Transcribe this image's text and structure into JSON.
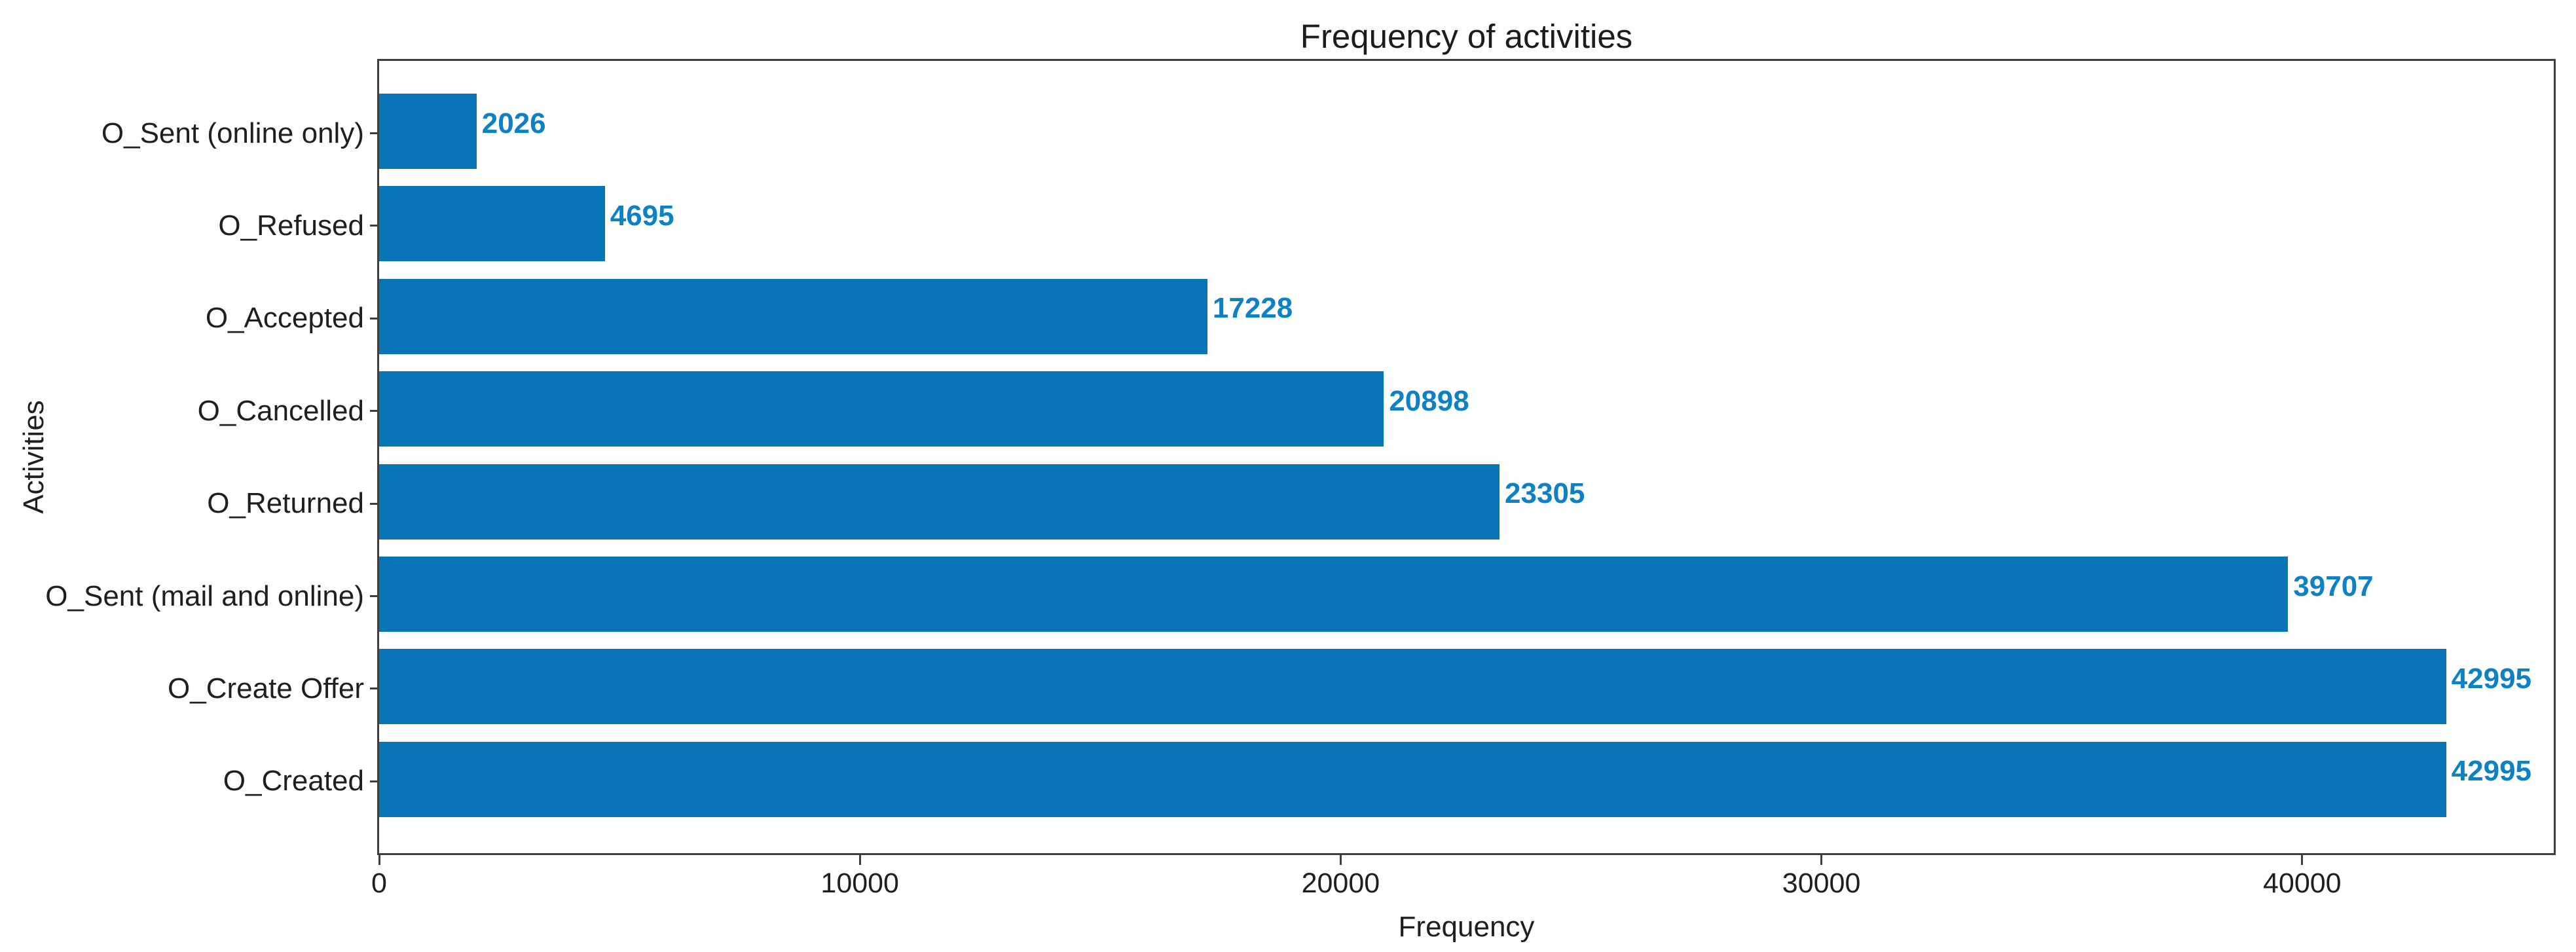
{
  "chart_data": {
    "type": "bar",
    "orientation": "horizontal",
    "title": "Frequency of activities",
    "xlabel": "Frequency",
    "ylabel": "Activities",
    "categories_top_to_bottom": [
      "O_Sent (online only)",
      "O_Refused",
      "O_Accepted",
      "O_Cancelled",
      "O_Returned",
      "O_Sent (mail and online)",
      "O_Create Offer",
      "O_Created"
    ],
    "values": [
      2026,
      4695,
      17228,
      20898,
      23305,
      39707,
      42995,
      42995
    ],
    "value_labels": [
      "2026",
      "4695",
      "17228",
      "20898",
      "23305",
      "39707",
      "42995",
      "42995"
    ],
    "xlim": [
      0,
      45233
    ],
    "xticks": [
      0,
      10000,
      20000,
      30000,
      40000
    ],
    "xtick_labels": [
      "0",
      "10000",
      "20000",
      "30000",
      "40000"
    ],
    "grid": false,
    "legend": "none",
    "colors": {
      "bar": "#0a75b6",
      "value_label": "#0d80c6",
      "spine": "#3f3f3f",
      "text": "#1f1f1f",
      "background": "#ffffff"
    }
  }
}
